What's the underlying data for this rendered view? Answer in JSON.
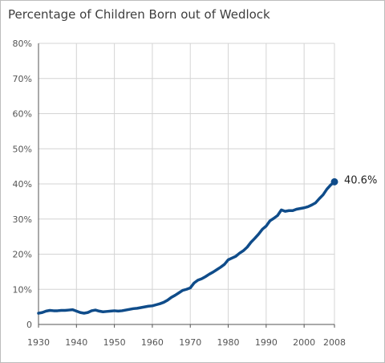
{
  "chart_data": {
    "type": "line",
    "title": "Percentage of Children Born out of Wedlock",
    "xlabel": "",
    "ylabel": "",
    "xlim": [
      1930,
      2008
    ],
    "ylim": [
      0,
      80
    ],
    "x_ticks": [
      1930,
      1940,
      1950,
      1960,
      1970,
      1980,
      1990,
      2000,
      2008
    ],
    "y_ticks": [
      {
        "value": 0,
        "label": "0"
      },
      {
        "value": 10,
        "label": "10%"
      },
      {
        "value": 20,
        "label": "20%"
      },
      {
        "value": 30,
        "label": "30%"
      },
      {
        "value": 40,
        "label": "40%"
      },
      {
        "value": 50,
        "label": "50%"
      },
      {
        "value": 60,
        "label": "60%"
      },
      {
        "value": 70,
        "label": "70%"
      },
      {
        "value": 80,
        "label": "80%"
      }
    ],
    "grid": true,
    "end_label": "40.6%",
    "line_color": "#0f4c8a",
    "series": [
      {
        "x": [
          1930,
          1931,
          1932,
          1933,
          1934,
          1935,
          1936,
          1937,
          1938,
          1939,
          1940,
          1941,
          1942,
          1943,
          1944,
          1945,
          1946,
          1947,
          1948,
          1949,
          1950,
          1951,
          1952,
          1953,
          1954,
          1955,
          1956,
          1957,
          1958,
          1959,
          1960,
          1961,
          1962,
          1963,
          1964,
          1965,
          1966,
          1967,
          1968,
          1969,
          1970,
          1971,
          1972,
          1973,
          1974,
          1975,
          1976,
          1977,
          1978,
          1979,
          1980,
          1981,
          1982,
          1983,
          1984,
          1985,
          1986,
          1987,
          1988,
          1989,
          1990,
          1991,
          1992,
          1993,
          1994,
          1995,
          1996,
          1997,
          1998,
          1999,
          2000,
          2001,
          2002,
          2003,
          2004,
          2005,
          2006,
          2007,
          2008
        ],
        "values": [
          3.2,
          3.4,
          3.8,
          4.0,
          3.9,
          3.9,
          4.0,
          4.0,
          4.1,
          4.2,
          3.8,
          3.4,
          3.2,
          3.4,
          3.9,
          4.1,
          3.8,
          3.6,
          3.7,
          3.8,
          3.9,
          3.8,
          3.9,
          4.1,
          4.3,
          4.5,
          4.6,
          4.8,
          5.0,
          5.2,
          5.3,
          5.6,
          5.9,
          6.3,
          6.9,
          7.7,
          8.3,
          9.0,
          9.7,
          10.0,
          10.4,
          11.8,
          12.6,
          13.0,
          13.6,
          14.3,
          14.9,
          15.6,
          16.3,
          17.1,
          18.4,
          18.9,
          19.4,
          20.3,
          21.0,
          22.0,
          23.4,
          24.5,
          25.7,
          27.1,
          28.0,
          29.5,
          30.2,
          31.0,
          32.6,
          32.2,
          32.4,
          32.4,
          32.8,
          33.0,
          33.2,
          33.5,
          34.0,
          34.6,
          35.8,
          36.9,
          38.5,
          39.7,
          40.6
        ]
      }
    ]
  }
}
